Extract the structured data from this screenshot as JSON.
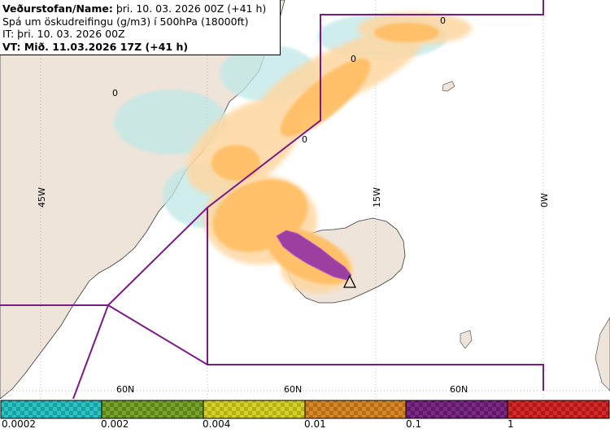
{
  "info": {
    "line1_bold": "Veðurstofan/Name:",
    "line1_rest": " þri. 10. 03. 2026 00Z (+41 h)",
    "line2": "Spá um öskudreifingu (g/m3) í 500hPa (18000ft)",
    "line3": "IT: þri. 10. 03. 2026 00Z",
    "line4": "VT: Mið. 11.03.2026 17Z (+41 h)"
  },
  "map": {
    "lon_labels": [
      "45W",
      "15W",
      "0W"
    ],
    "lat_labels": [
      "60N",
      "60N",
      "60N"
    ],
    "zero_markers": [
      "0",
      "0",
      "0",
      "0"
    ],
    "volcano_symbol": "triangle",
    "colors": {
      "land": "#efe4da",
      "boundary": "#7a1a86",
      "ash_light": "#ffd7a0",
      "ash_medium": "#ffbf66",
      "ash_high": "#9b3fa0",
      "ash_trace": "#bfe8e8"
    }
  },
  "legend": {
    "thresholds": [
      "0.0002",
      "0.002",
      "0.004",
      "0.01",
      "0.1",
      "1"
    ],
    "colors": [
      "#2ec4c4",
      "#7aa52a",
      "#d6d22a",
      "#d88a2a",
      "#7b2a86",
      "#d42a2a"
    ]
  }
}
